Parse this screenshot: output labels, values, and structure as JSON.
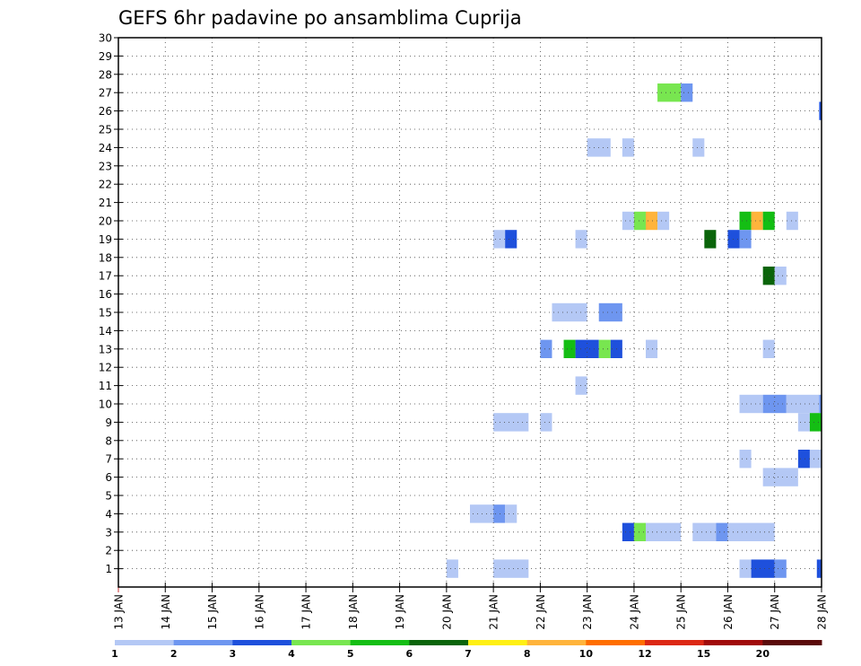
{
  "chart_data": {
    "type": "heatmap",
    "title": "GEFS 6hr padavine po ansamblima Cuprija",
    "xlabel": "",
    "ylabel": "",
    "x_ticks": [
      "13 JAN",
      "14 JAN",
      "15 JAN",
      "16 JAN",
      "17 JAN",
      "18 JAN",
      "19 JAN",
      "20 JAN",
      "21 JAN",
      "22 JAN",
      "23 JAN",
      "24 JAN",
      "25 JAN",
      "26 JAN",
      "27 JAN",
      "28 JAN"
    ],
    "y_ticks": [
      "1",
      "2",
      "3",
      "4",
      "5",
      "6",
      "7",
      "8",
      "9",
      "10",
      "11",
      "12",
      "13",
      "14",
      "15",
      "16",
      "17",
      "18",
      "19",
      "20",
      "21",
      "22",
      "23",
      "24",
      "25",
      "26",
      "27",
      "28",
      "29",
      "30"
    ],
    "xlim": [
      0,
      15
    ],
    "ylim": [
      0,
      30
    ],
    "grid": true,
    "colorbar": {
      "labels": [
        "1",
        "2",
        "3",
        "4",
        "5",
        "6",
        "7",
        "8",
        "10",
        "12",
        "15",
        "20"
      ],
      "colors": [
        "#b4c8f5",
        "#6e96f0",
        "#1e50dc",
        "#78e650",
        "#14be14",
        "#0a640a",
        "#fff014",
        "#ffb43c",
        "#ff6e00",
        "#dc2814",
        "#a00a0a",
        "#5a0a0a"
      ]
    },
    "cells": [
      {
        "member": 27,
        "start": 11.5,
        "end": 12.0,
        "color": "#78e650"
      },
      {
        "member": 27,
        "start": 12.0,
        "end": 12.25,
        "color": "#6e96f0"
      },
      {
        "member": 26,
        "start": 14.95,
        "end": 15.0,
        "color": "#1e50dc"
      },
      {
        "member": 24,
        "start": 10.0,
        "end": 10.5,
        "color": "#b4c8f5"
      },
      {
        "member": 24,
        "start": 10.75,
        "end": 11.0,
        "color": "#b4c8f5"
      },
      {
        "member": 24,
        "start": 12.25,
        "end": 12.5,
        "color": "#b4c8f5"
      },
      {
        "member": 20,
        "start": 10.75,
        "end": 11.0,
        "color": "#b4c8f5"
      },
      {
        "member": 20,
        "start": 11.0,
        "end": 11.25,
        "color": "#78e650"
      },
      {
        "member": 20,
        "start": 11.25,
        "end": 11.5,
        "color": "#ffb43c"
      },
      {
        "member": 20,
        "start": 11.5,
        "end": 11.75,
        "color": "#b4c8f5"
      },
      {
        "member": 20,
        "start": 13.25,
        "end": 13.5,
        "color": "#14be14"
      },
      {
        "member": 20,
        "start": 13.5,
        "end": 13.75,
        "color": "#ffb43c"
      },
      {
        "member": 20,
        "start": 13.75,
        "end": 14.0,
        "color": "#14be14"
      },
      {
        "member": 20,
        "start": 14.25,
        "end": 14.5,
        "color": "#b4c8f5"
      },
      {
        "member": 19,
        "start": 8.0,
        "end": 8.25,
        "color": "#b4c8f5"
      },
      {
        "member": 19,
        "start": 8.25,
        "end": 8.5,
        "color": "#1e50dc"
      },
      {
        "member": 19,
        "start": 9.75,
        "end": 10.0,
        "color": "#b4c8f5"
      },
      {
        "member": 19,
        "start": 12.5,
        "end": 12.75,
        "color": "#0a640a"
      },
      {
        "member": 19,
        "start": 13.0,
        "end": 13.25,
        "color": "#1e50dc"
      },
      {
        "member": 19,
        "start": 13.25,
        "end": 13.5,
        "color": "#6e96f0"
      },
      {
        "member": 17,
        "start": 13.75,
        "end": 14.0,
        "color": "#0a640a"
      },
      {
        "member": 17,
        "start": 14.0,
        "end": 14.25,
        "color": "#b4c8f5"
      },
      {
        "member": 15,
        "start": 9.25,
        "end": 10.0,
        "color": "#b4c8f5"
      },
      {
        "member": 15,
        "start": 10.25,
        "end": 10.75,
        "color": "#6e96f0"
      },
      {
        "member": 13,
        "start": 9.0,
        "end": 9.25,
        "color": "#6e96f0"
      },
      {
        "member": 13,
        "start": 9.5,
        "end": 9.75,
        "color": "#14be14"
      },
      {
        "member": 13,
        "start": 9.75,
        "end": 10.25,
        "color": "#1e50dc"
      },
      {
        "member": 13,
        "start": 10.25,
        "end": 10.5,
        "color": "#78e650"
      },
      {
        "member": 13,
        "start": 10.5,
        "end": 10.75,
        "color": "#1e50dc"
      },
      {
        "member": 13,
        "start": 11.25,
        "end": 11.5,
        "color": "#b4c8f5"
      },
      {
        "member": 13,
        "start": 13.75,
        "end": 14.0,
        "color": "#b4c8f5"
      },
      {
        "member": 11,
        "start": 9.75,
        "end": 10.0,
        "color": "#b4c8f5"
      },
      {
        "member": 10,
        "start": 13.25,
        "end": 13.75,
        "color": "#b4c8f5"
      },
      {
        "member": 10,
        "start": 13.75,
        "end": 14.25,
        "color": "#6e96f0"
      },
      {
        "member": 10,
        "start": 14.25,
        "end": 14.95,
        "color": "#b4c8f5"
      },
      {
        "member": 10,
        "start": 14.95,
        "end": 15.0,
        "color": "#6e96f0"
      },
      {
        "member": 9,
        "start": 8.0,
        "end": 8.75,
        "color": "#b4c8f5"
      },
      {
        "member": 9,
        "start": 9.0,
        "end": 9.25,
        "color": "#b4c8f5"
      },
      {
        "member": 9,
        "start": 14.5,
        "end": 14.75,
        "color": "#b4c8f5"
      },
      {
        "member": 9,
        "start": 14.75,
        "end": 15.0,
        "color": "#14be14"
      },
      {
        "member": 7,
        "start": 13.25,
        "end": 13.5,
        "color": "#b4c8f5"
      },
      {
        "member": 7,
        "start": 14.5,
        "end": 14.75,
        "color": "#1e50dc"
      },
      {
        "member": 7,
        "start": 14.75,
        "end": 15.0,
        "color": "#b4c8f5"
      },
      {
        "member": 6,
        "start": 13.75,
        "end": 14.5,
        "color": "#b4c8f5"
      },
      {
        "member": 4,
        "start": 7.5,
        "end": 8.0,
        "color": "#b4c8f5"
      },
      {
        "member": 4,
        "start": 8.0,
        "end": 8.25,
        "color": "#6e96f0"
      },
      {
        "member": 4,
        "start": 8.25,
        "end": 8.5,
        "color": "#b4c8f5"
      },
      {
        "member": 3,
        "start": 10.75,
        "end": 11.0,
        "color": "#1e50dc"
      },
      {
        "member": 3,
        "start": 11.0,
        "end": 11.25,
        "color": "#78e650"
      },
      {
        "member": 3,
        "start": 11.25,
        "end": 12.0,
        "color": "#b4c8f5"
      },
      {
        "member": 3,
        "start": 12.25,
        "end": 12.75,
        "color": "#b4c8f5"
      },
      {
        "member": 3,
        "start": 12.75,
        "end": 13.0,
        "color": "#6e96f0"
      },
      {
        "member": 3,
        "start": 13.0,
        "end": 14.0,
        "color": "#b4c8f5"
      },
      {
        "member": 1,
        "start": 7.0,
        "end": 7.25,
        "color": "#b4c8f5"
      },
      {
        "member": 1,
        "start": 8.0,
        "end": 8.75,
        "color": "#b4c8f5"
      },
      {
        "member": 1,
        "start": 13.25,
        "end": 13.5,
        "color": "#b4c8f5"
      },
      {
        "member": 1,
        "start": 13.5,
        "end": 14.0,
        "color": "#1e50dc"
      },
      {
        "member": 1,
        "start": 14.0,
        "end": 14.25,
        "color": "#6e96f0"
      },
      {
        "member": 1,
        "start": 14.9,
        "end": 15.0,
        "color": "#1e50dc"
      }
    ]
  }
}
